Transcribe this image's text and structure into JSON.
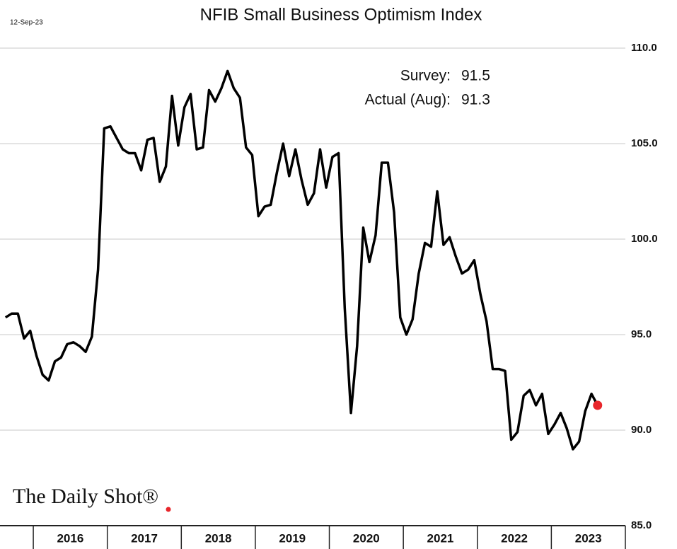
{
  "chart_data": {
    "type": "line",
    "title": "NFIB Small Business Optimism Index",
    "date": "12-Sep-23",
    "source": "The Daily Shot®",
    "annotations": [
      {
        "label": "Survey:",
        "value": 91.5
      },
      {
        "label": "Actual (Aug):",
        "value": 91.3
      }
    ],
    "xlim": [
      2015.55,
      2024.0
    ],
    "xticks": [
      {
        "value": 2016.5,
        "label": "2016"
      },
      {
        "value": 2017.5,
        "label": "2017"
      },
      {
        "value": 2018.5,
        "label": "2018"
      },
      {
        "value": 2019.5,
        "label": "2019"
      },
      {
        "value": 2020.5,
        "label": "2020"
      },
      {
        "value": 2021.5,
        "label": "2021"
      },
      {
        "value": 2022.5,
        "label": "2022"
      },
      {
        "value": 2023.5,
        "label": "2023"
      }
    ],
    "ylim": [
      85,
      110
    ],
    "yticks": [
      {
        "value": 110,
        "label": "110.0"
      },
      {
        "value": 105,
        "label": "105.0"
      },
      {
        "value": 100,
        "label": "100.0"
      },
      {
        "value": 95,
        "label": "95.0"
      },
      {
        "value": 90,
        "label": "90.0"
      },
      {
        "value": 85,
        "label": "85.0"
      }
    ],
    "grid": true,
    "marker_color": "#e8262b",
    "x": [
      2015.625,
      2015.708,
      2015.792,
      2015.875,
      2015.958,
      2016.042,
      2016.125,
      2016.208,
      2016.292,
      2016.375,
      2016.458,
      2016.542,
      2016.625,
      2016.708,
      2016.792,
      2016.875,
      2016.958,
      2017.042,
      2017.125,
      2017.208,
      2017.292,
      2017.375,
      2017.458,
      2017.542,
      2017.625,
      2017.708,
      2017.792,
      2017.875,
      2017.958,
      2018.042,
      2018.125,
      2018.208,
      2018.292,
      2018.375,
      2018.458,
      2018.542,
      2018.625,
      2018.708,
      2018.792,
      2018.875,
      2018.958,
      2019.042,
      2019.125,
      2019.208,
      2019.292,
      2019.375,
      2019.458,
      2019.542,
      2019.625,
      2019.708,
      2019.792,
      2019.875,
      2019.958,
      2020.042,
      2020.125,
      2020.208,
      2020.292,
      2020.375,
      2020.458,
      2020.542,
      2020.625,
      2020.708,
      2020.792,
      2020.875,
      2020.958,
      2021.042,
      2021.125,
      2021.208,
      2021.292,
      2021.375,
      2021.458,
      2021.542,
      2021.625,
      2021.708,
      2021.792,
      2021.875,
      2021.958,
      2022.042,
      2022.125,
      2022.208,
      2022.292,
      2022.375,
      2022.458,
      2022.542,
      2022.625,
      2022.708,
      2022.792,
      2022.875,
      2022.958,
      2023.042,
      2023.125,
      2023.208,
      2023.292,
      2023.375,
      2023.458,
      2023.542,
      2023.625
    ],
    "series": [
      {
        "color": "#000000",
        "values": [
          95.9,
          96.1,
          96.1,
          94.8,
          95.2,
          93.9,
          92.9,
          92.6,
          93.6,
          93.8,
          94.5,
          94.6,
          94.4,
          94.1,
          94.9,
          98.4,
          105.8,
          105.9,
          105.3,
          104.7,
          104.5,
          104.5,
          103.6,
          105.2,
          105.3,
          103.0,
          103.8,
          107.5,
          104.9,
          106.9,
          107.6,
          104.7,
          104.8,
          107.8,
          107.2,
          107.9,
          108.8,
          107.9,
          107.4,
          104.8,
          104.4,
          101.2,
          101.7,
          101.8,
          103.5,
          105.0,
          103.3,
          104.7,
          103.1,
          101.8,
          102.4,
          104.7,
          102.7,
          104.3,
          104.5,
          96.4,
          90.9,
          94.4,
          100.6,
          98.8,
          100.2,
          104.0,
          104.0,
          101.4,
          95.9,
          95.0,
          95.8,
          98.2,
          99.8,
          99.6,
          102.5,
          99.7,
          100.1,
          99.1,
          98.2,
          98.4,
          98.9,
          97.1,
          95.7,
          93.2,
          93.2,
          93.1,
          89.5,
          89.9,
          91.8,
          92.1,
          91.3,
          91.9,
          89.8,
          90.3,
          90.9,
          90.1,
          89.0,
          89.4,
          91.0,
          91.9,
          91.3
        ]
      }
    ]
  }
}
